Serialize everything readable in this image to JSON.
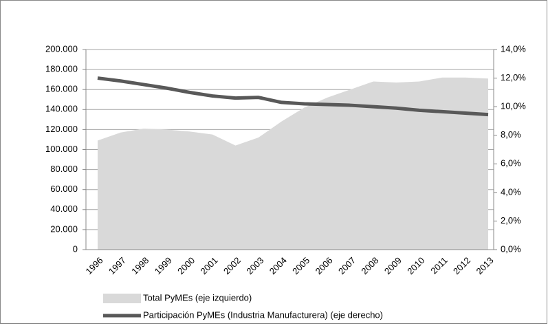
{
  "chart_data": {
    "type": "combo",
    "categories": [
      "1996",
      "1997",
      "1998",
      "1999",
      "2000",
      "2001",
      "2002",
      "2003",
      "2004",
      "2005",
      "2006",
      "2007",
      "2008",
      "2009",
      "2010",
      "2011",
      "2012",
      "2013"
    ],
    "series": [
      {
        "name": "Total PyMEs (eje izquierdo)",
        "type": "area",
        "color": "#d9d9d9",
        "values": [
          109000,
          117000,
          121000,
          120000,
          118000,
          115000,
          104000,
          112000,
          128000,
          142000,
          152000,
          160000,
          168000,
          167000,
          168000,
          172000,
          172000,
          171000
        ]
      },
      {
        "name": "Participación PyMEs (Industria Manufacturera) (eje derecho)",
        "type": "line",
        "axis": "y2",
        "color": "#595959",
        "values": [
          12.0,
          11.8,
          11.55,
          11.3,
          11.0,
          10.75,
          10.6,
          10.65,
          10.3,
          10.2,
          10.15,
          10.1,
          10.0,
          9.9,
          9.75,
          9.65,
          9.55,
          9.45
        ]
      }
    ],
    "ylim": [
      0,
      200000
    ],
    "yticks": [
      0,
      {
        "value": 20000,
        "label": "20.000"
      },
      {
        "value": 40000,
        "label": "40.000"
      },
      {
        "value": 60000,
        "label": "60.000"
      },
      {
        "value": 80000,
        "label": "80.000"
      },
      {
        "value": 100000,
        "label": "100.000"
      },
      {
        "value": 120000,
        "label": "120.000"
      },
      {
        "value": 140000,
        "label": "140.000"
      },
      {
        "value": 160000,
        "label": "160.000"
      },
      {
        "value": 180000,
        "label": "180.000"
      },
      {
        "value": 200000,
        "label": "200.000"
      }
    ],
    "y2lim": [
      0,
      14
    ],
    "y2ticks": [
      {
        "value": 0,
        "label": "0,0%"
      },
      {
        "value": 2,
        "label": "2,0%"
      },
      {
        "value": 4,
        "label": "4,0%"
      },
      {
        "value": 6,
        "label": "6,0%"
      },
      {
        "value": 8,
        "label": "8,0%"
      },
      {
        "value": 10,
        "label": "10,0%"
      },
      {
        "value": 12,
        "label": "12,0%"
      },
      {
        "value": 14,
        "label": "14,0%"
      }
    ],
    "grid": true
  }
}
